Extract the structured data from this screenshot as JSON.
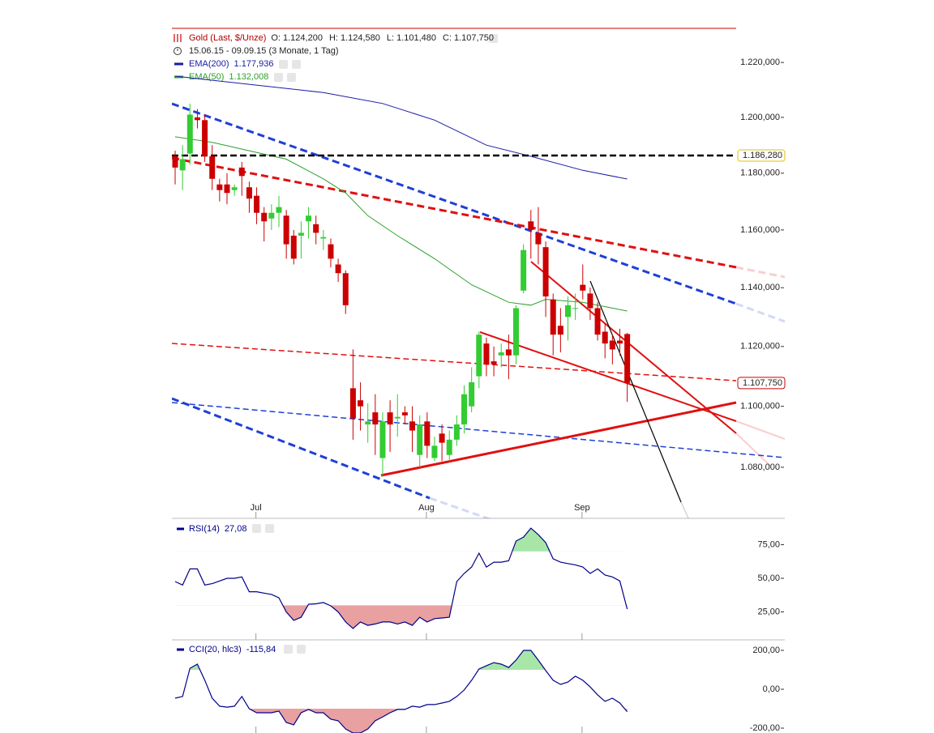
{
  "chart_data": [
    {
      "type": "candlestick",
      "period": "15.06.15 - 09.09.15 (3 Monate, 1 Tag)",
      "log_scale": true,
      "xlim": [
        -0.44,
        75.7
      ],
      "ylim": [
        1063.5,
        1232.6
      ],
      "yticks": [
        {
          "value": 1220,
          "label": "1.220,000"
        },
        {
          "value": 1200,
          "label": "1.200,000"
        },
        {
          "value": 1180,
          "label": "1.180,000"
        },
        {
          "value": 1160,
          "label": "1.160,000"
        },
        {
          "value": 1140,
          "label": "1.140,000"
        },
        {
          "value": 1120,
          "label": "1.120,000"
        },
        {
          "value": 1100,
          "label": "1.100,000"
        },
        {
          "value": 1080,
          "label": "1.080,000"
        }
      ],
      "xticks": [
        {
          "value": 10.9,
          "label": "Jul"
        },
        {
          "value": 33.9,
          "label": "Aug"
        },
        {
          "value": 54.9,
          "label": "Sep"
        }
      ],
      "series": [
        {
          "name": "Gold (Last, $/Unze)",
          "up_color": "#33cc33",
          "down_color": "#cc0000",
          "quote": [
            {
              "name": "O:",
              "value": 1124.2,
              "label": "1.124,200"
            },
            {
              "name": "H:",
              "value": 1124.58,
              "label": "1.124,580"
            },
            {
              "name": "L:",
              "value": 1101.48,
              "label": "1.101,480"
            },
            {
              "name": "C:",
              "value": 1107.75,
              "label": "1.107,750"
            }
          ],
          "open": [
            1186,
            1181,
            1187,
            1200,
            1199,
            1186,
            1176,
            1176,
            1174,
            1182,
            1175,
            1172,
            1166,
            1164,
            1166,
            1165,
            1158,
            1158,
            1163,
            1162,
            1157,
            1155,
            1148,
            1145,
            1106,
            1102,
            1094,
            1098,
            1083,
            1098,
            1096,
            1098,
            1095,
            1084,
            1095,
            1083,
            1091,
            1084,
            1089,
            1094,
            1100,
            1110,
            1121,
            1115,
            1117,
            1119,
            1117,
            1139,
            1163,
            1159,
            1154,
            1136,
            1127,
            1130,
            1133,
            1141,
            1138,
            1133,
            1125,
            1122,
            1122,
            1124.2
          ],
          "high": [
            1188,
            1190,
            1205,
            1203,
            1201,
            1190,
            1178,
            1180,
            1176,
            1184,
            1177,
            1175,
            1168,
            1169,
            1172,
            1167,
            1160,
            1163,
            1168,
            1165,
            1160,
            1157,
            1150,
            1146,
            1119,
            1108,
            1101,
            1104,
            1098,
            1102,
            1104,
            1100,
            1100,
            1097,
            1098,
            1090,
            1094,
            1092,
            1097,
            1107,
            1113,
            1125,
            1123,
            1120,
            1121,
            1124,
            1134,
            1155,
            1167,
            1168,
            1156,
            1138,
            1133,
            1137,
            1138,
            1148,
            1140,
            1135,
            1128,
            1124,
            1126,
            1124.58
          ],
          "low": [
            1176,
            1174,
            1183,
            1196,
            1184,
            1174,
            1170,
            1169,
            1172,
            1172,
            1166,
            1162,
            1156,
            1160,
            1161,
            1150,
            1148,
            1150,
            1157,
            1155,
            1153,
            1147,
            1142,
            1131,
            1089,
            1092,
            1088,
            1084,
            1077,
            1085,
            1090,
            1094,
            1085,
            1080,
            1083,
            1082,
            1082,
            1082,
            1087,
            1091,
            1098,
            1106,
            1110,
            1110,
            1113,
            1109,
            1114,
            1138,
            1150,
            1148,
            1130,
            1117,
            1118,
            1122,
            1129,
            1136,
            1129,
            1122,
            1116,
            1114,
            1117,
            1101.48
          ],
          "close": [
            1182,
            1185,
            1201,
            1199,
            1186,
            1178,
            1174,
            1173,
            1175,
            1179,
            1171,
            1166,
            1163,
            1166,
            1168,
            1155,
            1150,
            1159,
            1165,
            1159,
            1157.5,
            1150,
            1145,
            1134,
            1096,
            1100,
            1095,
            1094,
            1095,
            1094,
            1096.5,
            1097,
            1092,
            1094,
            1087,
            1087,
            1088,
            1089,
            1094,
            1104,
            1108,
            1124,
            1114,
            1114,
            1118,
            1117,
            1133,
            1153,
            1160,
            1155,
            1137,
            1124,
            1124,
            1134,
            1133,
            1139,
            1133,
            1124,
            1121,
            1119,
            1121,
            1107.75
          ]
        }
      ],
      "lines": [
        {
          "name": "EMA(200)",
          "color": "#1a1aa6",
          "last": {
            "value": 1177.936,
            "label": "1.177,936"
          },
          "x": [
            0,
            10,
            20,
            28,
            35,
            42,
            48,
            55,
            61
          ],
          "values": [
            1215,
            1212,
            1209,
            1205,
            1199,
            1190,
            1186,
            1181,
            1177.936
          ]
        },
        {
          "name": "EMA(50)",
          "color": "#2ca02c",
          "last": {
            "value": 1132.008,
            "label": "1.132,008"
          },
          "x": [
            0,
            5,
            10,
            15,
            20,
            23,
            26,
            30,
            35,
            40,
            45,
            48,
            50,
            55,
            61
          ],
          "values": [
            1193,
            1191,
            1188,
            1185,
            1178,
            1173,
            1165,
            1158,
            1150,
            1141,
            1135,
            1134,
            1136,
            1135,
            1132.008
          ]
        }
      ],
      "hline": {
        "value": 1186.28,
        "label": "1.186,280",
        "color": "#000000"
      },
      "last_price": {
        "value": 1107.75,
        "label": "1.107,750",
        "color": "#cc0000"
      }
    },
    {
      "type": "line",
      "xlim": [
        -0.44,
        75.7
      ],
      "ylim": [
        4.2,
        94.6
      ],
      "yticks": [
        {
          "value": 75,
          "label": "75,00"
        },
        {
          "value": 50,
          "label": "50,00"
        },
        {
          "value": 25,
          "label": "25,00"
        }
      ],
      "bands": {
        "lower": 30,
        "upper": 70,
        "lower_color": "#e8a0a0",
        "upper_color": "#a8e6a8"
      },
      "series": [
        {
          "name": "RSI(14)",
          "color": "#00008b",
          "last": {
            "value": 27.08,
            "label": "27,08"
          },
          "values": [
            47.6,
            45,
            57,
            57,
            45,
            46,
            48,
            50,
            50,
            51,
            40,
            40,
            39,
            38,
            35.5,
            25,
            18.7,
            21,
            30.7,
            31,
            32,
            29.5,
            25,
            17.5,
            12.7,
            17.5,
            15,
            16,
            17.5,
            17.5,
            16,
            17.5,
            15,
            21,
            17.5,
            20,
            20.5,
            21,
            47.6,
            53.6,
            58.4,
            68.7,
            58.4,
            62,
            62,
            63,
            77.7,
            80.7,
            87.3,
            82.5,
            76.5,
            64.5,
            62,
            61,
            60,
            58.4,
            53.6,
            57,
            52.4,
            51,
            48,
            27.08
          ]
        }
      ]
    },
    {
      "type": "line",
      "xlim": [
        -0.44,
        75.7
      ],
      "ylim": [
        -225,
        254
      ],
      "yticks": [
        {
          "value": 200,
          "label": "200,00"
        },
        {
          "value": 0,
          "label": "0,00"
        },
        {
          "value": -200,
          "label": "-200,00"
        }
      ],
      "bands": {
        "lower": -100,
        "upper": 100,
        "lower_color": "#e8a0a0",
        "upper_color": "#a8e6a8"
      },
      "series": [
        {
          "name": "CCI(20, hlc3)",
          "color": "#00008b",
          "last": {
            "value": -115.84,
            "label": "-115,84"
          },
          "values": [
            -46,
            -37,
            108,
            129,
            46,
            -46,
            -87,
            -92,
            -87,
            -37,
            -100,
            -121,
            -121,
            -121,
            -112,
            -171,
            -183,
            -121,
            -104,
            -121,
            -121,
            -154,
            -162,
            -204,
            -225,
            -225,
            -204,
            -162,
            -142,
            -121,
            -104,
            -104,
            -87,
            -92,
            -79,
            -79,
            -71,
            -62,
            -37,
            -4,
            46,
            104,
            121,
            137,
            129,
            112,
            150,
            200,
            200,
            150,
            96,
            46,
            25,
            37,
            67,
            46,
            12,
            -29,
            -62,
            -46,
            -71,
            -115.84
          ]
        }
      ]
    }
  ]
}
